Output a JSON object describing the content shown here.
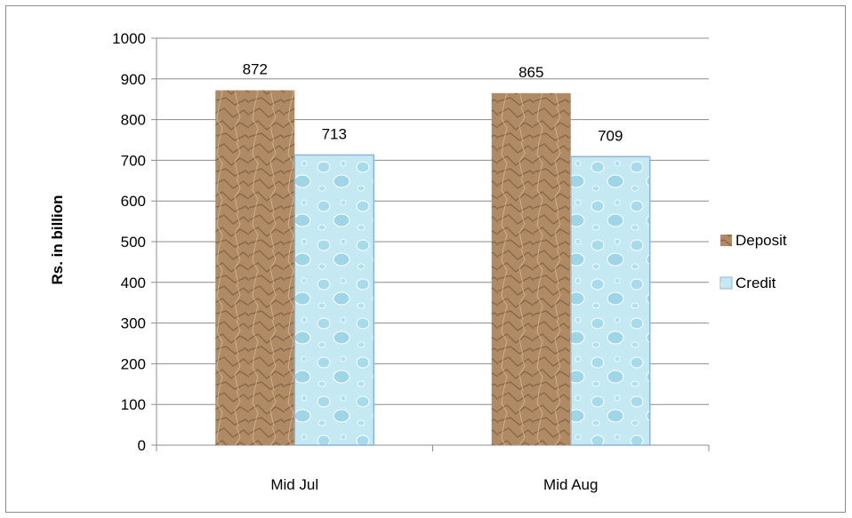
{
  "chart_data": {
    "type": "bar",
    "categories": [
      "Mid Jul",
      "Mid Aug"
    ],
    "series": [
      {
        "name": "Deposit",
        "values": [
          872,
          865
        ],
        "color": "#b08a64"
      },
      {
        "name": "Credit",
        "values": [
          713,
          709
        ],
        "color": "#bfe6f0"
      }
    ],
    "title": "",
    "xlabel": "",
    "ylabel": "Rs. in billion",
    "ylim": [
      0,
      1000
    ],
    "yticks": [
      0,
      100,
      200,
      300,
      400,
      500,
      600,
      700,
      800,
      900,
      1000
    ],
    "grid": true,
    "legend_position": "right",
    "data_labels": true
  }
}
